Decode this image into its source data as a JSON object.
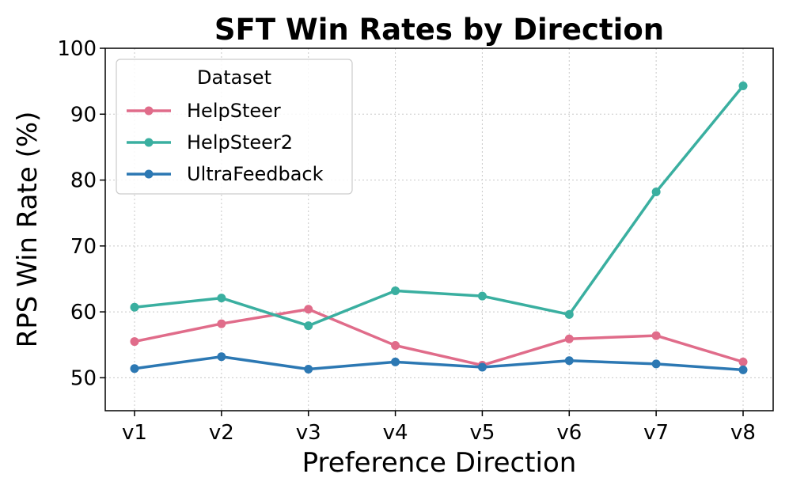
{
  "chart_data": {
    "type": "line",
    "title": "SFT Win Rates by Direction",
    "xlabel": "Preference Direction",
    "ylabel": "RPS Win Rate (%)",
    "categories": [
      "v1",
      "v2",
      "v3",
      "v4",
      "v5",
      "v6",
      "v7",
      "v8"
    ],
    "ylim": [
      45,
      100
    ],
    "yticks": [
      "50",
      "60",
      "70",
      "80",
      "90",
      "100"
    ],
    "grid": true,
    "legend": {
      "title": "Dataset",
      "placement": "top-left"
    },
    "series": [
      {
        "name": "HelpSteer",
        "color": "#e06c8a",
        "values": [
          55.5,
          58.2,
          60.4,
          54.9,
          51.9,
          55.9,
          56.4,
          52.4
        ]
      },
      {
        "name": "HelpSteer2",
        "color": "#3aafa0",
        "values": [
          60.7,
          62.1,
          57.9,
          63.2,
          62.4,
          59.6,
          78.2,
          94.3
        ]
      },
      {
        "name": "UltraFeedback",
        "color": "#2c78b3",
        "values": [
          51.4,
          53.2,
          51.3,
          52.4,
          51.6,
          52.6,
          52.1,
          51.2
        ]
      }
    ]
  }
}
